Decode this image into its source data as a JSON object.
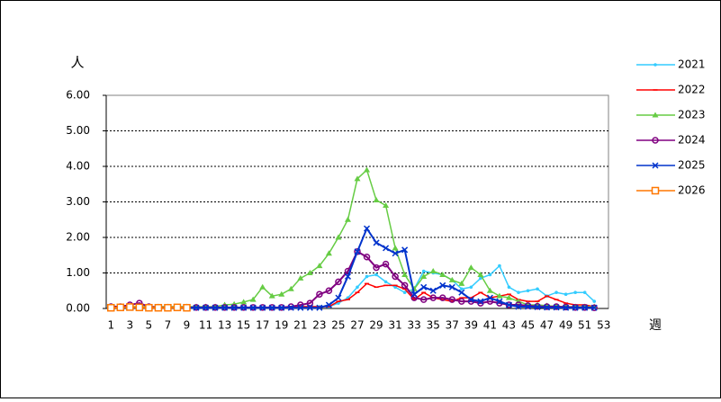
{
  "chart_data": {
    "type": "line",
    "y_label": "人",
    "x_label": "週",
    "categories": [
      "1",
      null,
      "3",
      null,
      "5",
      null,
      "7",
      null,
      "9",
      null,
      "11",
      null,
      "13",
      null,
      "15",
      null,
      "17",
      null,
      "19",
      null,
      "21",
      null,
      "23",
      null,
      "25",
      null,
      "27",
      null,
      "29",
      null,
      "31",
      null,
      "33",
      null,
      "35",
      null,
      "37",
      null,
      "39",
      null,
      "41",
      null,
      "43",
      null,
      "45",
      null,
      "47",
      null,
      "49",
      null,
      "51",
      null,
      "53"
    ],
    "ylim": [
      0,
      6
    ],
    "yticks": [
      {
        "value": 0,
        "label": "0.00"
      },
      {
        "value": 1,
        "label": "1.00"
      },
      {
        "value": 2,
        "label": "2.00"
      },
      {
        "value": 3,
        "label": "3.00"
      },
      {
        "value": 4,
        "label": "4.00"
      },
      {
        "value": 5,
        "label": "5.00"
      },
      {
        "value": 6,
        "label": "6.00"
      }
    ],
    "grid": true,
    "series": [
      {
        "name": "2021",
        "color": "#33ccff",
        "marker": "dot",
        "values": [
          0.1,
          0.02,
          0.02,
          0.02,
          0.02,
          0.02,
          0.02,
          0.02,
          0.02,
          0.02,
          0.02,
          0.02,
          0.02,
          0.02,
          0.02,
          0.02,
          0.02,
          0.02,
          0.02,
          0.02,
          0.05,
          0.05,
          0.05,
          0.05,
          0.15,
          0.3,
          0.6,
          0.9,
          0.95,
          0.75,
          0.6,
          0.45,
          0.55,
          1.05,
          1.0,
          0.95,
          0.8,
          0.55,
          0.6,
          0.85,
          0.95,
          1.2,
          0.6,
          0.45,
          0.5,
          0.55,
          0.35,
          0.45,
          0.4,
          0.45,
          0.45,
          0.2,
          null
        ]
      },
      {
        "name": "2022",
        "color": "#ff0000",
        "marker": "tick",
        "values": [
          0.02,
          0.02,
          0.02,
          0.02,
          0.02,
          0.02,
          0.02,
          0.02,
          0.02,
          0.02,
          0.02,
          0.02,
          0.02,
          0.02,
          0.02,
          0.02,
          0.02,
          0.02,
          0.02,
          0.02,
          0.05,
          0.05,
          0.05,
          0.05,
          0.2,
          0.25,
          0.45,
          0.7,
          0.6,
          0.65,
          0.65,
          0.55,
          0.25,
          0.45,
          0.3,
          0.25,
          0.2,
          0.3,
          0.3,
          0.45,
          0.3,
          0.35,
          0.4,
          0.25,
          0.2,
          0.2,
          0.35,
          0.25,
          0.15,
          0.1,
          0.1,
          0.05,
          null
        ]
      },
      {
        "name": "2023",
        "color": "#66cc44",
        "marker": "triangle",
        "values": [
          0.05,
          0.05,
          0.05,
          0.05,
          0.05,
          0.05,
          0.05,
          0.05,
          0.05,
          0.05,
          0.05,
          0.05,
          0.1,
          0.12,
          0.18,
          0.25,
          0.6,
          0.35,
          0.4,
          0.55,
          0.85,
          1.0,
          1.2,
          1.55,
          2.0,
          2.5,
          3.65,
          3.9,
          3.05,
          2.9,
          1.7,
          0.95,
          0.55,
          0.9,
          1.05,
          0.95,
          0.8,
          0.7,
          1.15,
          0.95,
          0.5,
          0.35,
          0.3,
          0.2,
          0.1,
          0.1,
          0.08,
          0.06,
          0.05,
          0.05,
          0.05,
          0.05,
          null
        ]
      },
      {
        "name": "2024",
        "color": "#800080",
        "marker": "circle",
        "values": [
          0.05,
          0.05,
          0.1,
          0.15,
          0.05,
          0.03,
          0.03,
          0.03,
          0.03,
          0.03,
          0.03,
          0.03,
          0.03,
          0.03,
          0.03,
          0.03,
          0.03,
          0.03,
          0.03,
          0.05,
          0.1,
          0.15,
          0.4,
          0.5,
          0.75,
          1.05,
          1.6,
          1.45,
          1.15,
          1.25,
          0.9,
          0.65,
          0.3,
          0.25,
          0.3,
          0.3,
          0.25,
          0.2,
          0.2,
          0.15,
          0.2,
          0.15,
          0.1,
          0.1,
          0.08,
          0.06,
          0.05,
          0.05,
          0.04,
          0.03,
          0.03,
          0.02,
          null
        ]
      },
      {
        "name": "2025",
        "color": "#0033cc",
        "marker": "cross",
        "values": [
          0.02,
          0.02,
          0.02,
          0.02,
          0.02,
          0.02,
          0.02,
          0.02,
          0.02,
          0.02,
          0.02,
          0.02,
          0.02,
          0.02,
          0.02,
          0.02,
          0.02,
          0.02,
          0.02,
          0.02,
          0.02,
          0.02,
          0.02,
          0.1,
          0.3,
          0.9,
          1.6,
          2.25,
          1.85,
          1.7,
          1.55,
          1.65,
          0.4,
          0.6,
          0.5,
          0.65,
          0.6,
          0.45,
          0.25,
          0.2,
          0.3,
          0.2,
          0.1,
          0.05,
          0.05,
          0.04,
          0.03,
          0.03,
          0.02,
          0.02,
          0.02,
          0.02,
          null
        ]
      },
      {
        "name": "2026",
        "color": "#ff7700",
        "marker": "square",
        "values": [
          0.02,
          0.03,
          0.04,
          0.03,
          0.02,
          0.02,
          0.02,
          0.03,
          0.02,
          null,
          null,
          null,
          null,
          null,
          null,
          null,
          null,
          null,
          null,
          null,
          null,
          null,
          null,
          null,
          null,
          null,
          null,
          null,
          null,
          null,
          null,
          null,
          null,
          null,
          null,
          null,
          null,
          null,
          null,
          null,
          null,
          null,
          null,
          null,
          null,
          null,
          null,
          null,
          null,
          null,
          null,
          null,
          null
        ]
      }
    ]
  }
}
